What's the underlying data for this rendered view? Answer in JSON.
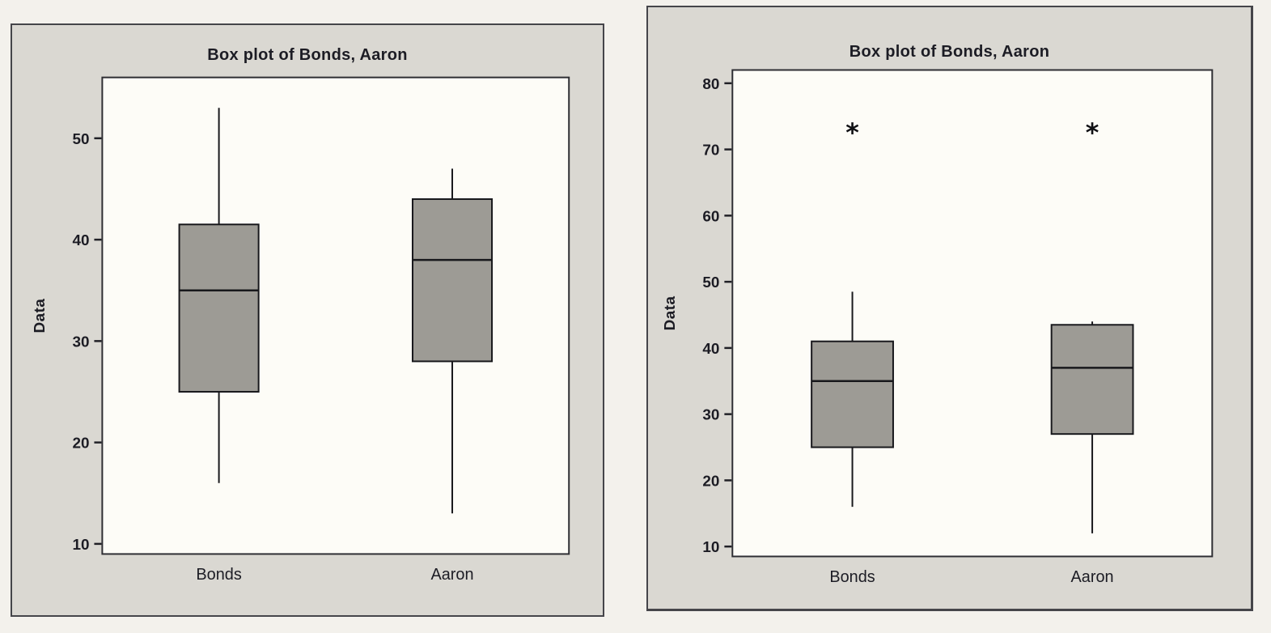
{
  "colors": {
    "panel_background": "#dad8d2",
    "plot_background": "#fdfcf7",
    "box_fill": "#9d9b95",
    "ink": "#1c1c24"
  },
  "chart_data": [
    {
      "type": "box",
      "title": "Box plot of Bonds, Aaron",
      "ylabel": "Data",
      "categories": [
        "Bonds",
        "Aaron"
      ],
      "ylim": [
        9,
        56
      ],
      "yticks": [
        10,
        20,
        30,
        40,
        50
      ],
      "grid": false,
      "legend": "none",
      "series": [
        {
          "name": "Bonds",
          "whisker_low": 16,
          "q1": 25,
          "median": 35,
          "q3": 41.5,
          "whisker_high": 53,
          "outliers": []
        },
        {
          "name": "Aaron",
          "whisker_low": 13,
          "q1": 28,
          "median": 38,
          "q3": 44,
          "whisker_high": 47,
          "outliers": []
        }
      ]
    },
    {
      "type": "box",
      "title": "Box plot of Bonds, Aaron",
      "ylabel": "Data",
      "categories": [
        "Bonds",
        "Aaron"
      ],
      "ylim": [
        8.5,
        82
      ],
      "yticks": [
        10,
        20,
        30,
        40,
        50,
        60,
        70,
        80
      ],
      "grid": false,
      "legend": "none",
      "series": [
        {
          "name": "Bonds",
          "whisker_low": 16,
          "q1": 25,
          "median": 35,
          "q3": 41,
          "whisker_high": 48.5,
          "outliers": [
            73
          ]
        },
        {
          "name": "Aaron",
          "whisker_low": 12,
          "q1": 27,
          "median": 37,
          "q3": 43.5,
          "whisker_high": 44,
          "outliers": [
            73
          ]
        }
      ]
    }
  ]
}
